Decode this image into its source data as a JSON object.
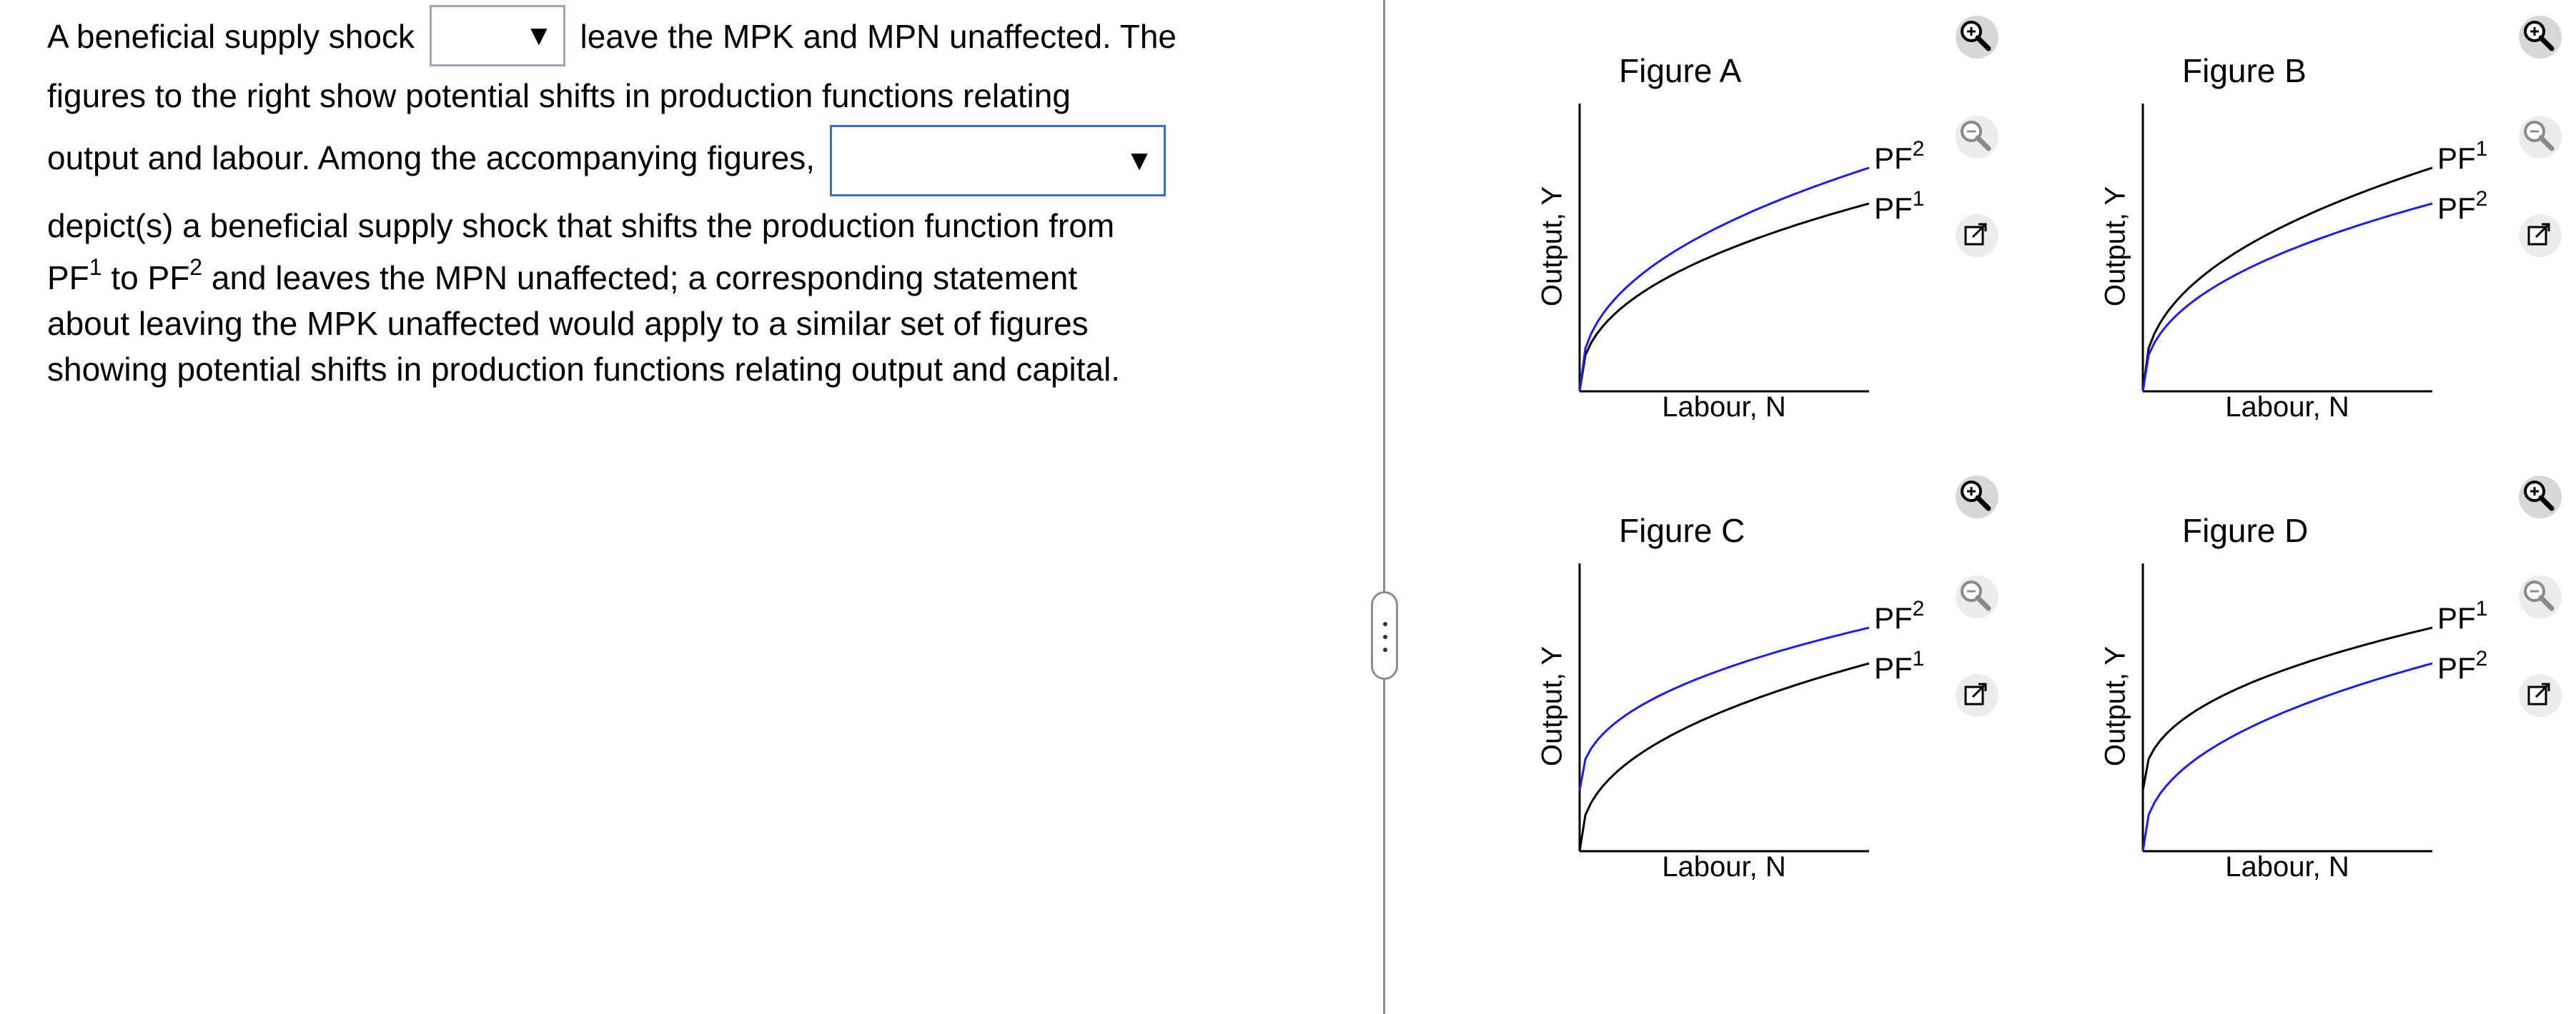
{
  "question": {
    "part1": "A beneficial supply shock",
    "part2": "leave the MPK and MPN unaffected. The",
    "line2": "figures to the right show potential shifts in production functions relating",
    "line3": "output and labour. Among the accompanying figures,",
    "line4": "depict(s) a beneficial supply shock that shifts the production function from",
    "pf1_base": "PF",
    "pf1_sup": "1",
    "to_text": "to",
    "pf2_base": "PF",
    "pf2_sup": "2",
    "line5_rest": "and leaves the MPN unaffected; a corresponding statement",
    "line6": "about leaving the MPK unaffected would apply to a similar set of figures",
    "line7": "showing potential shifts in production functions relating output and capital.",
    "dropdown1": {
      "value": "",
      "caret": "▼"
    },
    "dropdown2": {
      "value": "",
      "caret": "▼"
    }
  },
  "colors": {
    "blue_curve": "#1f1fe0",
    "black_curve": "#000000",
    "dropdown_border": "#3d6bc6"
  },
  "figures": [
    {
      "title": "Figure A",
      "ylabel": "Output, Y",
      "xlabel": "Labour, N",
      "top_label": "PF",
      "top_sup": "2",
      "bottom_label": "PF",
      "bottom_sup": "1",
      "tools": [
        "zoom-in-icon",
        "zoom-out-icon",
        "popout-icon"
      ]
    },
    {
      "title": "Figure B",
      "ylabel": "Output, Y",
      "xlabel": "Labour, N",
      "top_label": "PF",
      "top_sup": "1",
      "bottom_label": "PF",
      "bottom_sup": "2",
      "tools": [
        "zoom-in-icon",
        "zoom-out-icon",
        "popout-icon"
      ]
    },
    {
      "title": "Figure C",
      "ylabel": "Output, Y",
      "xlabel": "Labour, N",
      "top_label": "PF",
      "top_sup": "2",
      "bottom_label": "PF",
      "bottom_sup": "1",
      "tools": [
        "zoom-in-icon",
        "zoom-out-icon",
        "popout-icon"
      ]
    },
    {
      "title": "Figure D",
      "ylabel": "Output, Y",
      "xlabel": "Labour, N",
      "top_label": "PF",
      "top_sup": "1",
      "bottom_label": "PF",
      "bottom_sup": "2",
      "tools": [
        "zoom-in-icon",
        "zoom-out-icon",
        "popout-icon"
      ]
    }
  ]
}
